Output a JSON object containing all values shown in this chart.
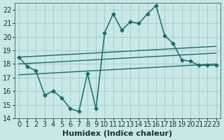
{
  "xlabel": "Humidex (Indice chaleur)",
  "bg_color": "#c8e8e8",
  "grid_color": "#a8cccc",
  "line_color": "#1a6b6b",
  "xlim": [
    -0.5,
    23.5
  ],
  "ylim": [
    14,
    22.5
  ],
  "yticks": [
    14,
    15,
    16,
    17,
    18,
    19,
    20,
    21,
    22
  ],
  "xticks": [
    0,
    1,
    2,
    3,
    4,
    5,
    6,
    7,
    8,
    9,
    10,
    11,
    12,
    13,
    14,
    15,
    16,
    17,
    18,
    19,
    20,
    21,
    22,
    23
  ],
  "line1_x": [
    0,
    1,
    2,
    3,
    4,
    5,
    6,
    7,
    8,
    9,
    10,
    11,
    12,
    13,
    14,
    15,
    16,
    17,
    18,
    19,
    20,
    21,
    22,
    23
  ],
  "line1_y": [
    18.5,
    17.8,
    17.5,
    15.7,
    16.0,
    15.5,
    14.7,
    14.5,
    17.3,
    14.7,
    20.3,
    21.7,
    20.5,
    21.1,
    21.0,
    21.7,
    22.3,
    20.1,
    19.5,
    18.3,
    18.2,
    17.9,
    17.9,
    17.9
  ],
  "line2_x": [
    0,
    23
  ],
  "line2_y": [
    18.0,
    18.8
  ],
  "line3_x": [
    0,
    23
  ],
  "line3_y": [
    18.5,
    19.3
  ],
  "line4_x": [
    0,
    23
  ],
  "line4_y": [
    17.2,
    18.0
  ],
  "tick_fontsize": 7,
  "label_fontsize": 8
}
